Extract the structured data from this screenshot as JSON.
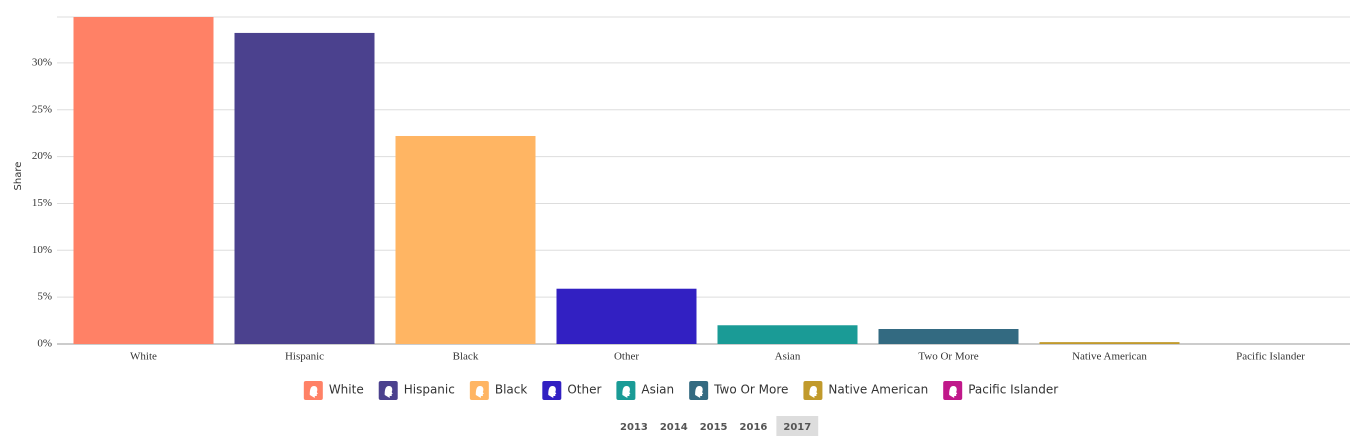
{
  "chart_data": {
    "type": "bar",
    "y_label": "Share",
    "categories": [
      "White",
      "Hispanic",
      "Black",
      "Other",
      "Asian",
      "Two Or More",
      "Native American",
      "Pacific Islander"
    ],
    "values": [
      34.9,
      33.2,
      22.2,
      5.9,
      2.0,
      1.6,
      0.2,
      0
    ],
    "colors": [
      "#ff8166",
      "#4b418e",
      "#ffb563",
      "#3220c2",
      "#1a9b96",
      "#336a81",
      "#c19a2c",
      "#c0188a"
    ],
    "ylim": [
      0,
      34.9
    ],
    "yticks": [
      {
        "value": 0,
        "label": "0%"
      },
      {
        "value": 5,
        "label": "5%"
      },
      {
        "value": 10,
        "label": "10%"
      },
      {
        "value": 15,
        "label": "15%"
      },
      {
        "value": 20,
        "label": "20%"
      },
      {
        "value": 25,
        "label": "25%"
      },
      {
        "value": 30,
        "label": "30%"
      }
    ],
    "grid": true,
    "years": [
      2013,
      2014,
      2015,
      2016,
      2017
    ],
    "selected_year": 2017
  }
}
